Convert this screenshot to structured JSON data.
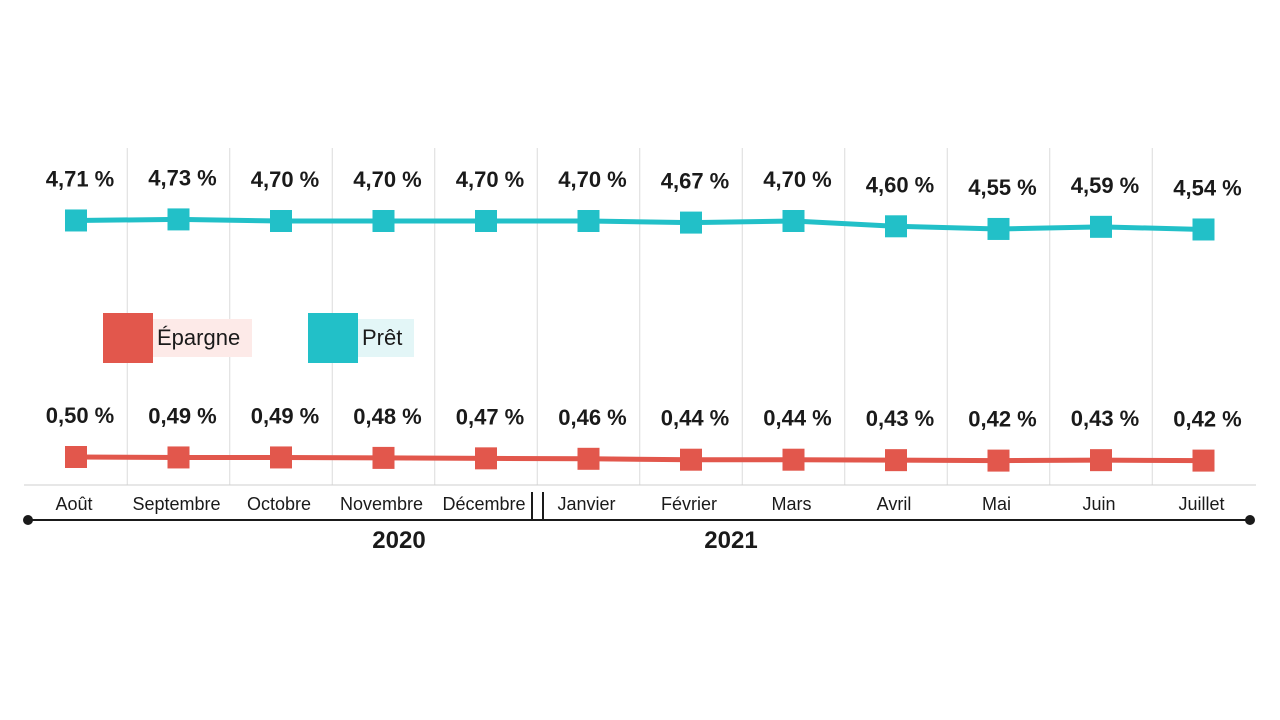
{
  "chart_data": {
    "type": "line",
    "categories": [
      "Août",
      "Septembre",
      "Octobre",
      "Novembre",
      "Décembre",
      "Janvier",
      "Février",
      "Mars",
      "Avril",
      "Mai",
      "Juin",
      "Juillet"
    ],
    "series": [
      {
        "name": "Prêt",
        "color": "#22c0c8",
        "values": [
          4.71,
          4.73,
          4.7,
          4.7,
          4.7,
          4.7,
          4.67,
          4.7,
          4.6,
          4.55,
          4.59,
          4.54
        ],
        "labels": [
          "4,71 %",
          "4,73 %",
          "4,70 %",
          "4,70 %",
          "4,70 %",
          "4,70 %",
          "4,67 %",
          "4,70 %",
          "4,60 %",
          "4,55 %",
          "4,59 %",
          "4,54 %"
        ]
      },
      {
        "name": "Épargne",
        "color": "#e2574c",
        "values": [
          0.5,
          0.49,
          0.49,
          0.48,
          0.47,
          0.46,
          0.44,
          0.44,
          0.43,
          0.42,
          0.43,
          0.42
        ],
        "labels": [
          "0,50 %",
          "0,49 %",
          "0,49 %",
          "0,48 %",
          "0,47 %",
          "0,46 %",
          "0,44 %",
          "0,44 %",
          "0,43 %",
          "0,42 %",
          "0,43 %",
          "0,42 %"
        ]
      }
    ],
    "years": [
      {
        "label": "2020",
        "months": [
          "Août",
          "Septembre",
          "Octobre",
          "Novembre",
          "Décembre"
        ]
      },
      {
        "label": "2021",
        "months": [
          "Janvier",
          "Février",
          "Mars",
          "Avril",
          "Mai",
          "Juin",
          "Juillet"
        ]
      }
    ],
    "unit": "%",
    "grid": "vertical lines between months"
  },
  "legend": {
    "epargne_label": "Épargne",
    "epargne_color": "#e2574c",
    "epargne_bg": "#fdeae8",
    "pret_label": "Prêt",
    "pret_color": "#22c0c8",
    "pret_bg": "#e3f6f7"
  }
}
